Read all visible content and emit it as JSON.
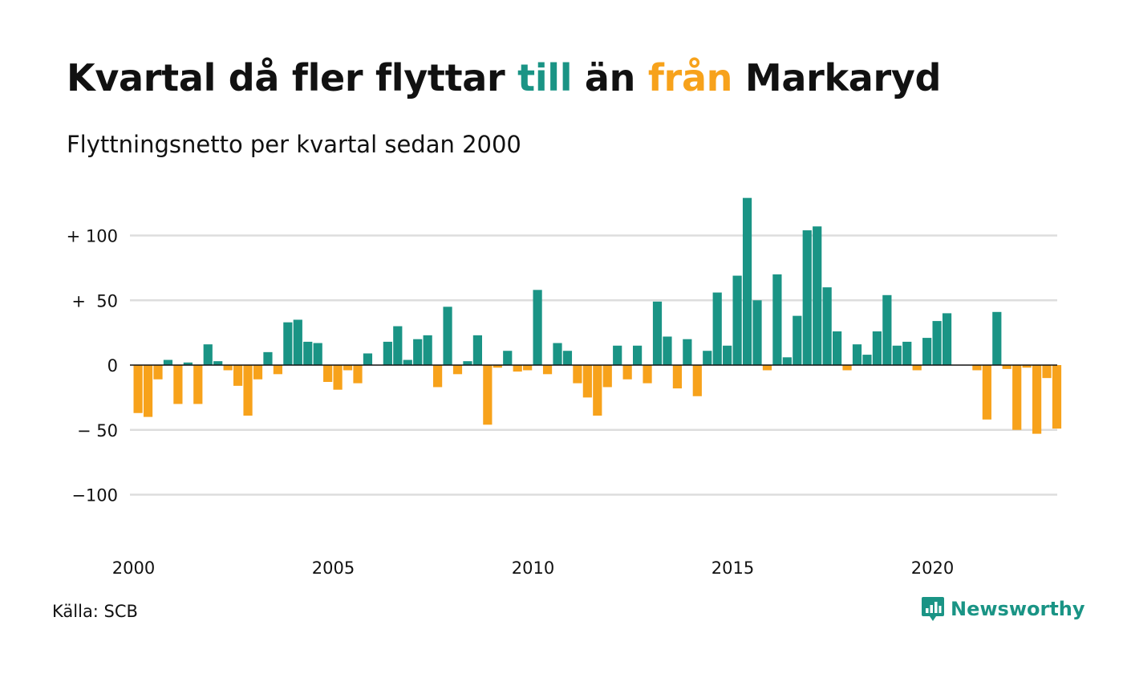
{
  "header": {
    "title_parts": [
      "Kvartal då fler flyttar ",
      "till",
      " än ",
      "från",
      " Markaryd"
    ],
    "subtitle": "Flyttningsnetto per kvartal sedan 2000"
  },
  "footer": {
    "source": "Källa: SCB",
    "brand": "Newsworthy",
    "brand_icon": "newsworthy-logo-icon"
  },
  "colors": {
    "positive": "#1a9485",
    "negative": "#f7a21b",
    "grid": "#dddddd",
    "text": "#111111"
  },
  "chart_data": {
    "type": "bar",
    "title": "Kvartal då fler flyttar till än från Markaryd",
    "subtitle": "Flyttningsnetto per kvartal sedan 2000",
    "xlabel": "",
    "ylabel": "",
    "ylim": [
      -140,
      140
    ],
    "yticks": [
      100,
      50,
      0,
      -50,
      -100
    ],
    "ytick_labels": [
      "+ 100",
      "+  50",
      "0",
      "− 50",
      "−100"
    ],
    "xticks": [
      "2000",
      "2005",
      "2010",
      "2015",
      "2020"
    ],
    "grid": true,
    "legend": "none",
    "categories": [
      "2000K1",
      "2000K2",
      "2000K3",
      "2000K4",
      "2001K1",
      "2001K2",
      "2001K3",
      "2001K4",
      "2002K1",
      "2002K2",
      "2002K3",
      "2002K4",
      "2003K1",
      "2003K2",
      "2003K3",
      "2003K4",
      "2004K1",
      "2004K2",
      "2004K3",
      "2004K4",
      "2005K1",
      "2005K2",
      "2005K3",
      "2005K4",
      "2006K1",
      "2006K2",
      "2006K3",
      "2006K4",
      "2007K1",
      "2007K2",
      "2007K3",
      "2007K4",
      "2008K1",
      "2008K2",
      "2008K3",
      "2008K4",
      "2009K1",
      "2009K2",
      "2009K3",
      "2009K4",
      "2010K1",
      "2010K2",
      "2010K3",
      "2010K4",
      "2011K1",
      "2011K2",
      "2011K3",
      "2011K4",
      "2012K1",
      "2012K2",
      "2012K3",
      "2012K4",
      "2013K1",
      "2013K2",
      "2013K3",
      "2013K4",
      "2014K1",
      "2014K2",
      "2014K3",
      "2014K4",
      "2015K1",
      "2015K2",
      "2015K3",
      "2015K4",
      "2016K1",
      "2016K2",
      "2016K3",
      "2016K4",
      "2017K1",
      "2017K2",
      "2017K3",
      "2017K4",
      "2018K1",
      "2018K2",
      "2018K3",
      "2018K4",
      "2019K1",
      "2019K2",
      "2019K3",
      "2019K4",
      "2020K1",
      "2020K2",
      "2020K3",
      "2020K4",
      "2021K1",
      "2021K2",
      "2021K3",
      "2021K4",
      "2022K1",
      "2022K2",
      "2022K3",
      "2022K4",
      "2023K1"
    ],
    "values": [
      -37,
      -40,
      -11,
      4,
      -30,
      2,
      -30,
      16,
      3,
      -4,
      -16,
      -39,
      -11,
      10,
      -7,
      33,
      35,
      18,
      17,
      -13,
      -19,
      -4,
      -14,
      9,
      0,
      18,
      30,
      4,
      20,
      23,
      -17,
      45,
      -7,
      3,
      23,
      -46,
      -2,
      11,
      -5,
      -4,
      58,
      -7,
      17,
      11,
      -14,
      -25,
      -39,
      -17,
      15,
      -11,
      15,
      -14,
      49,
      22,
      -18,
      20,
      -24,
      11,
      56,
      15,
      69,
      129,
      50,
      -4,
      70,
      6,
      38,
      104,
      107,
      60,
      26,
      -4,
      16,
      8,
      26,
      54,
      15,
      18,
      -4,
      21,
      34,
      40,
      0,
      0,
      -4,
      -42,
      41,
      -3,
      -50,
      -2,
      -53,
      -10,
      -49
    ]
  }
}
